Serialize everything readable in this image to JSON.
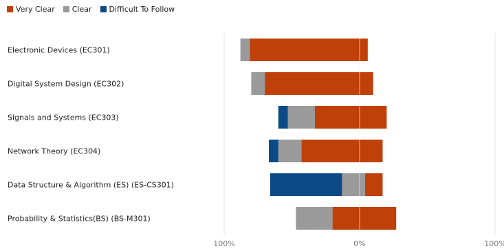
{
  "chart_data": {
    "type": "bar",
    "orientation": "horizontal-diverging",
    "categories": [
      "Electronic Devices (EC301)",
      "Digital System Design (EC302)",
      "Signals and Systems (EC303)",
      "Network Theory (EC304)",
      "Data Structure & Algorithm (ES) (ES-CS301)",
      "Probability & Statistics(BS) (BS-M301)"
    ],
    "series": [
      {
        "name": "Very Clear",
        "color": "#C0400A",
        "values": [
          87,
          80,
          53,
          60,
          13,
          47
        ]
      },
      {
        "name": "Clear",
        "color": "#9A9A9A",
        "values": [
          7,
          10,
          20,
          17,
          17,
          27
        ]
      },
      {
        "name": "Difficult To Follow",
        "color": "#0B4A87",
        "values": [
          0,
          0,
          7,
          7,
          53,
          0
        ]
      }
    ],
    "offsets": [
      6,
      10,
      20,
      17,
      17,
      27
    ],
    "xlim": [
      -100,
      100
    ],
    "tick_labels": [
      "100%",
      "0%",
      "100%"
    ],
    "legend_position": "top-left",
    "grid": true
  }
}
